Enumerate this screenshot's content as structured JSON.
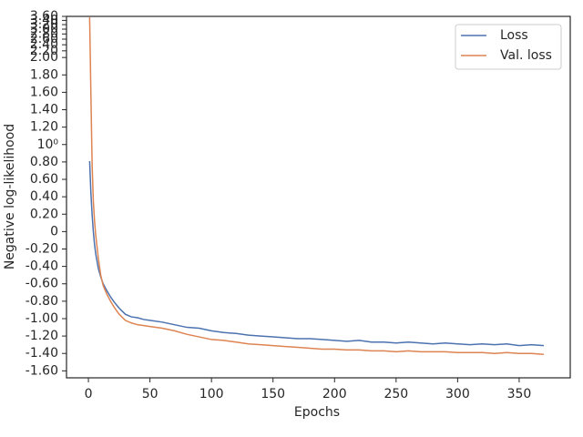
{
  "chart_data": {
    "type": "line",
    "xlabel": "Epochs",
    "ylabel": "Negative log-likelihood",
    "x": [
      1,
      2,
      3,
      4,
      5,
      6,
      8,
      10,
      12,
      15,
      18,
      21,
      25,
      30,
      35,
      40,
      45,
      50,
      60,
      70,
      80,
      90,
      100,
      110,
      120,
      130,
      140,
      150,
      160,
      170,
      180,
      190,
      200,
      210,
      220,
      230,
      240,
      250,
      260,
      270,
      280,
      290,
      300,
      310,
      320,
      330,
      340,
      350,
      360,
      370
    ],
    "series": [
      {
        "name": "Loss",
        "color": "#4c72b0",
        "values": [
          0.81,
          0.45,
          0.2,
          0.0,
          -0.15,
          -0.26,
          -0.42,
          -0.52,
          -0.6,
          -0.68,
          -0.75,
          -0.81,
          -0.88,
          -0.95,
          -0.98,
          -0.99,
          -1.01,
          -1.02,
          -1.04,
          -1.07,
          -1.1,
          -1.11,
          -1.14,
          -1.16,
          -1.17,
          -1.19,
          -1.2,
          -1.21,
          -1.22,
          -1.23,
          -1.23,
          -1.24,
          -1.25,
          -1.26,
          -1.25,
          -1.27,
          -1.27,
          -1.28,
          -1.27,
          -1.28,
          -1.29,
          -1.28,
          -1.29,
          -1.3,
          -1.29,
          -1.3,
          -1.29,
          -1.31,
          -1.3,
          -1.31
        ]
      },
      {
        "name": "Val. loss",
        "color": "#dd8452",
        "values": [
          3.55,
          1.6,
          0.78,
          0.35,
          0.12,
          -0.05,
          -0.3,
          -0.5,
          -0.62,
          -0.72,
          -0.8,
          -0.87,
          -0.95,
          -1.02,
          -1.05,
          -1.07,
          -1.08,
          -1.09,
          -1.11,
          -1.14,
          -1.18,
          -1.21,
          -1.24,
          -1.25,
          -1.27,
          -1.29,
          -1.3,
          -1.31,
          -1.32,
          -1.33,
          -1.34,
          -1.35,
          -1.35,
          -1.36,
          -1.36,
          -1.37,
          -1.37,
          -1.38,
          -1.37,
          -1.38,
          -1.38,
          -1.38,
          -1.39,
          -1.39,
          -1.39,
          -1.4,
          -1.39,
          -1.4,
          -1.4,
          -1.41
        ]
      }
    ],
    "xlim": [
      -17.8,
      391.5
    ],
    "xticks": [
      0,
      50,
      100,
      150,
      200,
      250,
      300,
      350
    ],
    "ylim": [
      -1.68,
      3.6
    ],
    "yscale": "symlog",
    "linthresh": 2,
    "yticks": [
      {
        "value": -1.6,
        "label": "-1.60"
      },
      {
        "value": -1.4,
        "label": "-1.40"
      },
      {
        "value": -1.2,
        "label": "-1.20"
      },
      {
        "value": -1.0,
        "label": "-1.00"
      },
      {
        "value": -0.8,
        "label": "-0.80"
      },
      {
        "value": -0.6,
        "label": "-0.60"
      },
      {
        "value": -0.4,
        "label": "-0.40"
      },
      {
        "value": -0.2,
        "label": "-0.20"
      },
      0,
      {
        "value": 0.2,
        "label": "0.20"
      },
      {
        "value": 0.4,
        "label": "0.40"
      },
      {
        "value": 0.6,
        "label": "0.60"
      },
      {
        "value": 0.8,
        "label": "0.80"
      },
      {
        "value": 1,
        "label": "10⁰"
      },
      {
        "value": 1.2,
        "label": "1.20"
      },
      {
        "value": 1.4,
        "label": "1.40"
      },
      {
        "value": 1.6,
        "label": "1.60"
      },
      {
        "value": 1.8,
        "label": "1.80"
      },
      {
        "value": 2.0,
        "label": "2.00"
      },
      {
        "value": 2.2,
        "label": "2.20"
      },
      {
        "value": 2.4,
        "label": "2.40"
      },
      {
        "value": 2.6,
        "label": "2.60"
      },
      {
        "value": 2.8,
        "label": "2.80"
      },
      {
        "value": 3.0,
        "label": "3.00"
      },
      {
        "value": 3.2,
        "label": "3.20"
      },
      {
        "value": 3.4,
        "label": "3.40"
      },
      {
        "value": 3.6,
        "label": "3.60"
      }
    ],
    "legend": "upper right",
    "grid": false
  }
}
